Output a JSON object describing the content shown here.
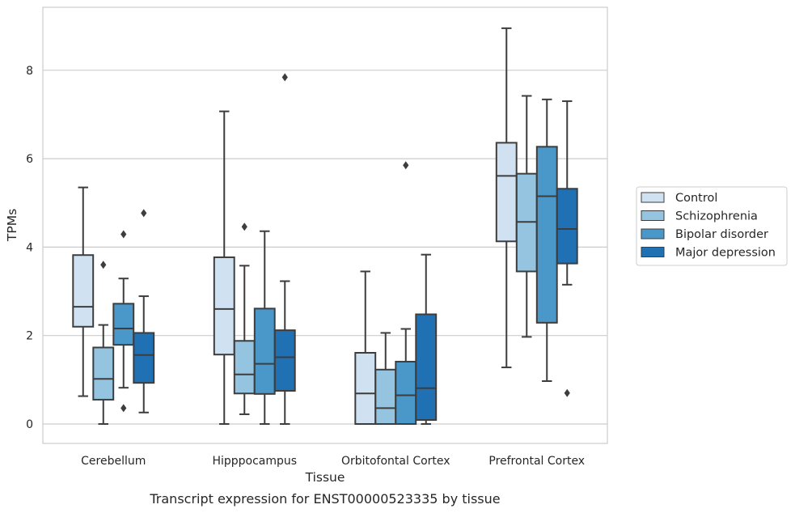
{
  "caption": "Transcript expression for ENST00000523335 by tissue",
  "colors": {
    "Control": "#d0e1f2",
    "Schizophrenia": "#94c4df",
    "Bipolar disorder": "#4a98c9",
    "Major depression": "#2070b4",
    "box_edge": "#3d3d3d",
    "grid": "#cccccc",
    "frame": "#cccccc"
  },
  "chart_data": {
    "type": "box",
    "xlabel": "Tissue",
    "ylabel": "TPMs",
    "ylim": [
      -0.4,
      9.6
    ],
    "yticks": [
      0,
      2,
      4,
      6,
      8
    ],
    "grid": "horizontal",
    "legend_position": "right",
    "categories": [
      "Cerebellum",
      "Hipppocampus",
      "Orbitofontal Cortex",
      "Prefrontal Cortex"
    ],
    "series": [
      {
        "name": "Control",
        "boxes": [
          {
            "whisker_low": 0.63,
            "q1": 2.2,
            "median": 2.65,
            "q3": 3.82,
            "whisker_high": 5.35,
            "outliers": []
          },
          {
            "whisker_low": 0.0,
            "q1": 1.57,
            "median": 2.6,
            "q3": 3.77,
            "whisker_high": 7.07,
            "outliers": []
          },
          {
            "whisker_low": 0.0,
            "q1": 0.0,
            "median": 0.69,
            "q3": 1.61,
            "whisker_high": 3.45,
            "outliers": []
          },
          {
            "whisker_low": 1.28,
            "q1": 4.13,
            "median": 5.61,
            "q3": 6.36,
            "whisker_high": 8.95,
            "outliers": []
          }
        ]
      },
      {
        "name": "Schizophrenia",
        "boxes": [
          {
            "whisker_low": 0.0,
            "q1": 0.55,
            "median": 1.02,
            "q3": 1.73,
            "whisker_high": 2.24,
            "outliers": [
              3.6
            ]
          },
          {
            "whisker_low": 0.22,
            "q1": 0.69,
            "median": 1.12,
            "q3": 1.88,
            "whisker_high": 3.58,
            "outliers": [
              4.46
            ]
          },
          {
            "whisker_low": 0.0,
            "q1": 0.0,
            "median": 0.36,
            "q3": 1.23,
            "whisker_high": 2.06,
            "outliers": []
          },
          {
            "whisker_low": 1.97,
            "q1": 3.45,
            "median": 4.57,
            "q3": 5.66,
            "whisker_high": 7.42,
            "outliers": []
          }
        ]
      },
      {
        "name": "Bipolar disorder",
        "boxes": [
          {
            "whisker_low": 0.82,
            "q1": 1.79,
            "median": 2.16,
            "q3": 2.72,
            "whisker_high": 3.29,
            "outliers": [
              4.29,
              0.36
            ]
          },
          {
            "whisker_low": 0.0,
            "q1": 0.68,
            "median": 1.36,
            "q3": 2.61,
            "whisker_high": 4.36,
            "outliers": []
          },
          {
            "whisker_low": 0.0,
            "q1": 0.0,
            "median": 0.65,
            "q3": 1.41,
            "whisker_high": 2.15,
            "outliers": [
              5.85
            ]
          },
          {
            "whisker_low": 0.97,
            "q1": 2.29,
            "median": 5.15,
            "q3": 6.27,
            "whisker_high": 7.34,
            "outliers": []
          }
        ]
      },
      {
        "name": "Major depression",
        "boxes": [
          {
            "whisker_low": 0.26,
            "q1": 0.93,
            "median": 1.56,
            "q3": 2.06,
            "whisker_high": 2.89,
            "outliers": [
              4.77
            ]
          },
          {
            "whisker_low": 0.0,
            "q1": 0.75,
            "median": 1.51,
            "q3": 2.12,
            "whisker_high": 3.23,
            "outliers": [
              7.84
            ]
          },
          {
            "whisker_low": 0.0,
            "q1": 0.09,
            "median": 0.81,
            "q3": 2.48,
            "whisker_high": 3.83,
            "outliers": []
          },
          {
            "whisker_low": 3.15,
            "q1": 3.63,
            "median": 4.41,
            "q3": 5.32,
            "whisker_high": 7.3,
            "outliers": [
              0.7
            ]
          }
        ]
      }
    ]
  }
}
